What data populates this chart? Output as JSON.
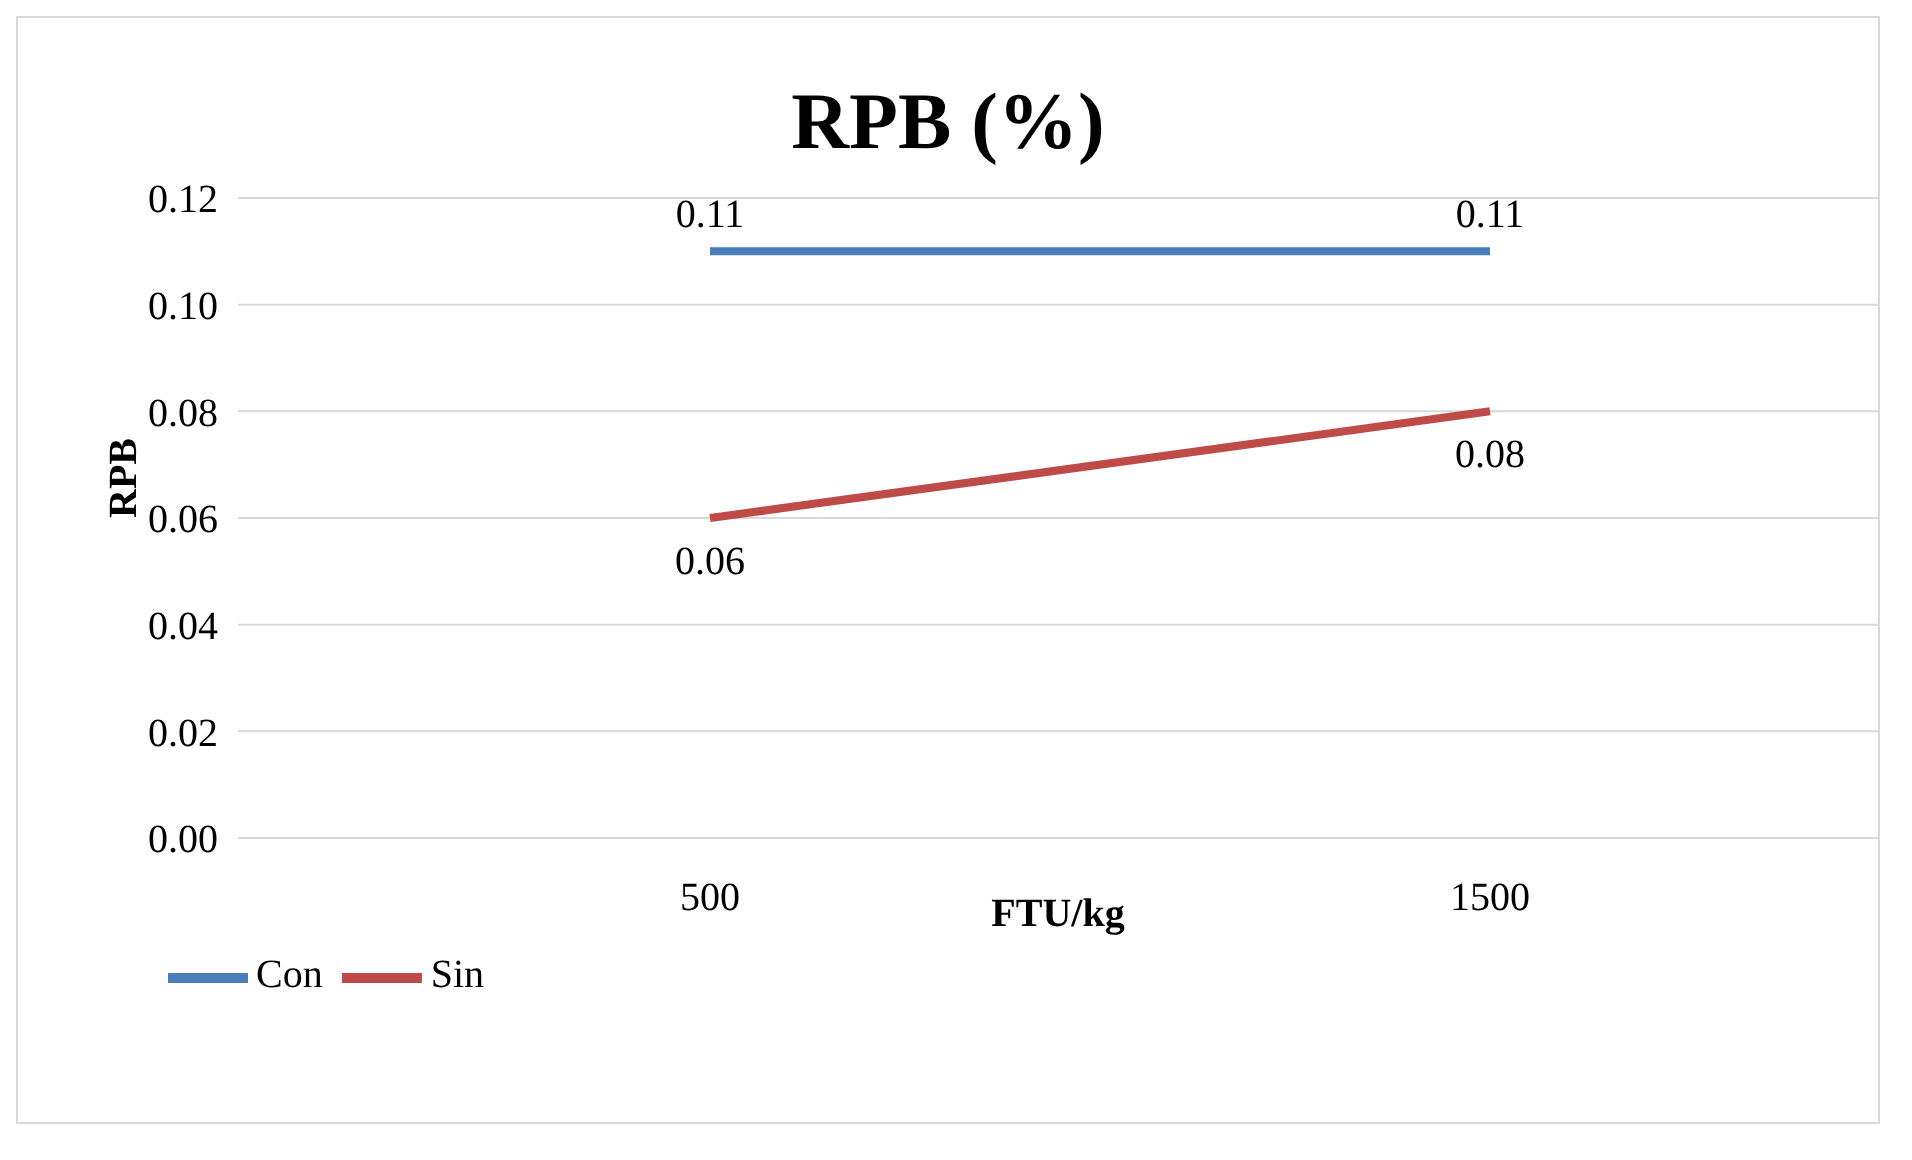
{
  "chart_data": {
    "type": "line",
    "title": "RPB (%)",
    "xlabel": "FTU/kg",
    "ylabel": "RPB",
    "categories": [
      "500",
      "1500"
    ],
    "series": [
      {
        "name": "Con",
        "color": "#4a7ebb",
        "values": [
          0.11,
          0.11
        ]
      },
      {
        "name": "Sin",
        "color": "#be4b48",
        "values": [
          0.06,
          0.08
        ]
      }
    ],
    "ylim": [
      0,
      0.12
    ],
    "yticks": [
      {
        "value": 0,
        "label": "0.00"
      },
      {
        "value": 0.02,
        "label": "0.02"
      },
      {
        "value": 0.04,
        "label": "0.04"
      },
      {
        "value": 0.06,
        "label": "0.06"
      },
      {
        "value": 0.08,
        "label": "0.08"
      },
      {
        "value": 0.1,
        "label": "0.10"
      },
      {
        "value": 0.12,
        "label": "0.12"
      }
    ],
    "grid": "y",
    "legend": "bottom left",
    "marker": "none",
    "line_style": "solid",
    "data_labels": true
  }
}
